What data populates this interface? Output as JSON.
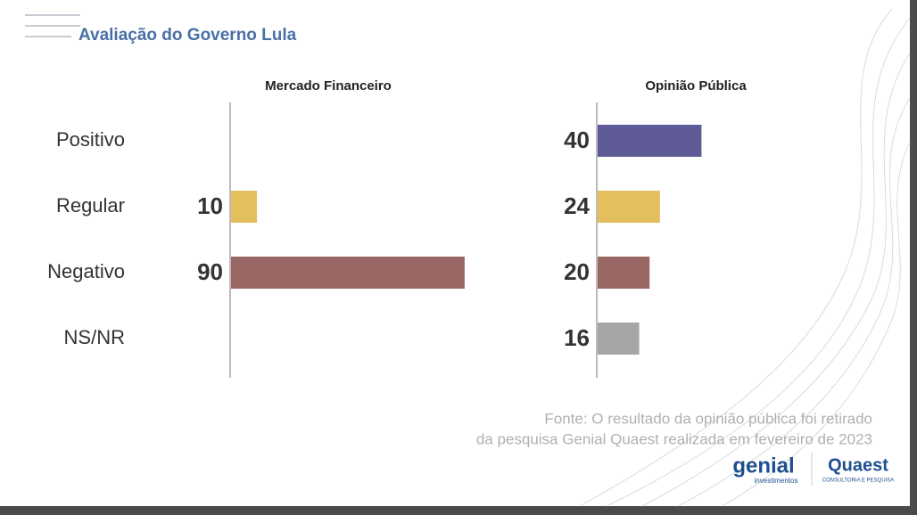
{
  "title": "Avaliação do Governo Lula",
  "chart_data": [
    {
      "type": "barh",
      "title": "Mercado Financeiro",
      "categories": [
        "Positivo",
        "Regular",
        "Negativo",
        "NS/NR"
      ],
      "values": [
        null,
        10,
        90,
        null
      ],
      "colors": [
        "#5f5b96",
        "#e3bf5e",
        "#9a6864",
        "#a6a6a6"
      ]
    },
    {
      "type": "barh",
      "title": "Opinião Pública",
      "values": [
        40,
        24,
        20,
        16
      ],
      "colors": [
        "#5f5b96",
        "#e3bf5e",
        "#9a6864",
        "#a6a6a6"
      ]
    }
  ],
  "source": [
    "Fonte: O resultado da opinião pública foi retirado",
    "da pesquisa Genial Quaest realizada em fevereiro de 2023"
  ],
  "logos": {
    "genial": "genial",
    "genial_sub": "investimentos",
    "quaest": "Quaest",
    "quaest_sub": "CONSULTORIA E PESQUISA"
  }
}
